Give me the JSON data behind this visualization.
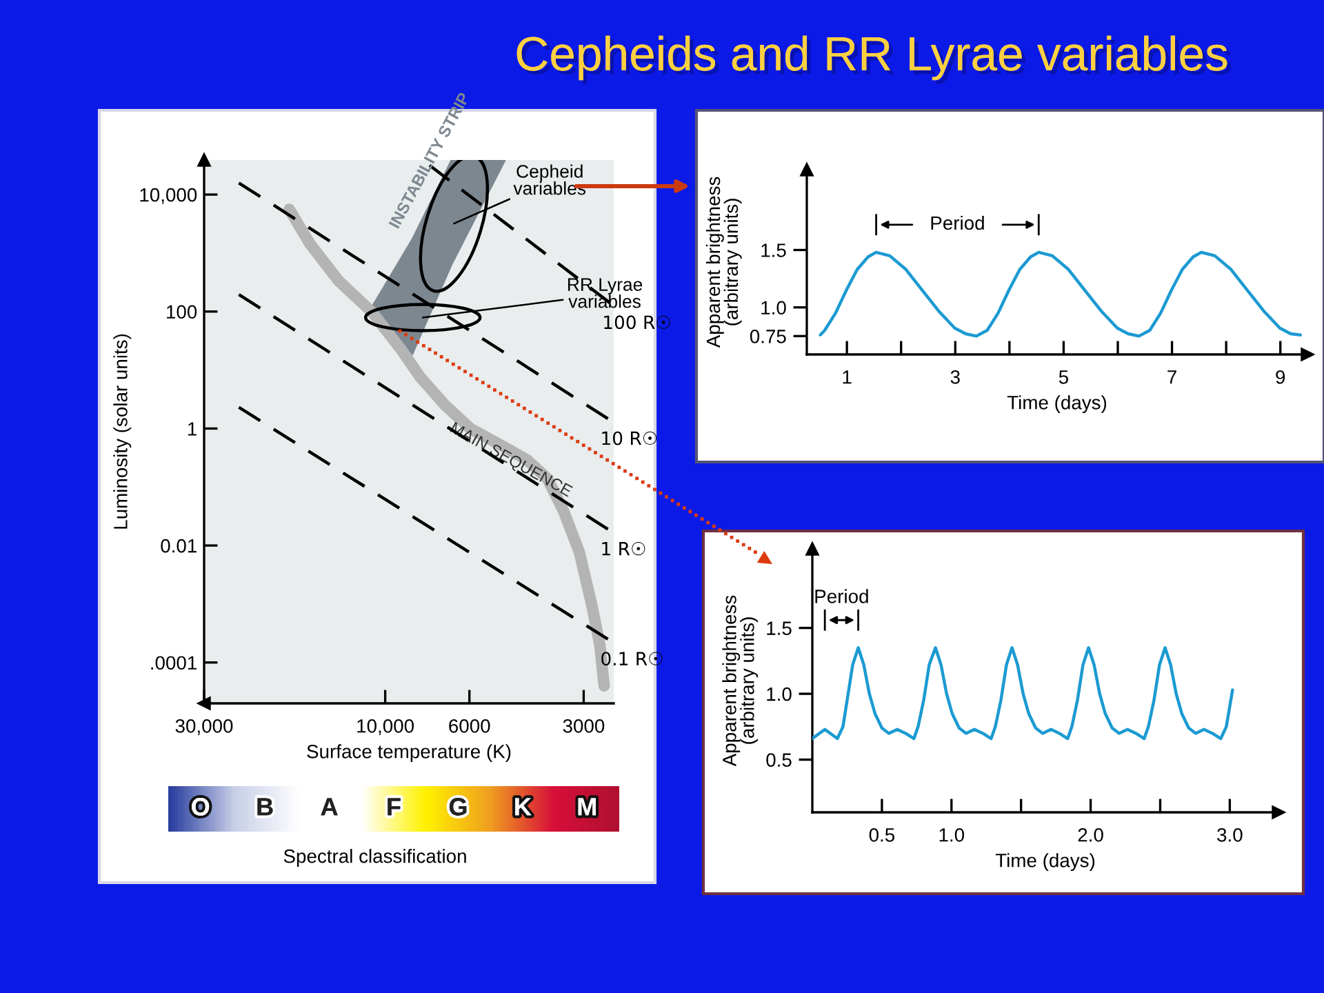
{
  "chart_data": [
    {
      "type": "line",
      "title": "Cepheids and RR Lyrae variables",
      "xlabel": "Surface temperature (K)",
      "ylabel": "Luminosity (solar units)",
      "log": "xy",
      "xlim": [
        30000,
        2500
      ],
      "ylim": [
        2e-05,
        39000
      ],
      "xticks": [
        {
          "value": 30000,
          "label": "30,000"
        },
        {
          "value": 10000,
          "label": "10,000"
        },
        6000,
        3000
      ],
      "yticks": [
        {
          "value": 10000,
          "label": "10,000"
        },
        100,
        1,
        0.01,
        {
          "value": 0.0001,
          "label": ".0001"
        }
      ],
      "series": [
        {
          "name": "INSTABILITY STRIP",
          "type": "line",
          "color": "#7d8790",
          "x": [
            10800,
            8480,
            6690,
            4830
          ],
          "values": [
            null,
            null,
            null,
            null
          ],
          "lower": [
            125,
            18.6,
            630,
            39000
          ],
          "upper": [
            125,
            1740,
            39000,
            39000
          ]
        },
        {
          "name": "MAIN SEQUENCE",
          "type": "line",
          "color": "#b4b4b4",
          "x": [
            17900,
            15800,
            13300,
            10800,
            9060,
            8090,
            6950,
            5970,
            4900,
            4230,
            3740,
            3390,
            3080,
            2860,
            2720,
            2650
          ],
          "values": [
            5600,
            1450,
            340,
            96,
            22,
            7.6,
            2.5,
            1.0,
            0.5,
            0.29,
            0.14,
            0.039,
            0.0077,
            0.001,
            0.0002,
            4e-05
          ]
        },
        {
          "name": "100 R☉",
          "type": "line",
          "line_style": "dashed",
          "color": "#000000",
          "x": [
            7640,
            2560
          ],
          "values": [
            31600,
            141
          ]
        },
        {
          "name": "10 R☉",
          "type": "line",
          "line_style": "dashed",
          "color": "#000000",
          "x": [
            24300,
            2590
          ],
          "values": [
            15800,
            1.47
          ]
        },
        {
          "name": "1 R☉",
          "type": "line",
          "line_style": "dashed",
          "color": "#000000",
          "x": [
            24300,
            2590
          ],
          "values": [
            195,
            0.019
          ]
        },
        {
          "name": "0.1 R☉",
          "type": "line",
          "line_style": "dashed",
          "color": "#000000",
          "x": [
            24300,
            2590
          ],
          "values": [
            2.3,
            0.00025
          ]
        }
      ],
      "annotations": [
        "Cepheid\nvariables",
        {
          "text": "RR Lyrae\nvariables",
          "x": 7960,
          "y": 79
        },
        "O",
        "B",
        "A",
        "F",
        "G",
        "K",
        "M",
        "Spectral classification"
      ]
    },
    {
      "type": "line",
      "xlabel": "Time (days)",
      "ylabel": "Apparent brightness\n(arbitrary units)",
      "xlim": [
        0.26,
        9.5
      ],
      "ylim": [
        0.59,
        2.2
      ],
      "xticks": [
        1,
        {
          "value": 2,
          "label": null
        },
        3,
        {
          "value": 4,
          "label": null
        },
        5,
        {
          "value": 6,
          "label": null
        },
        7,
        {
          "value": 8,
          "label": null
        },
        9
      ],
      "yticks": [
        0.75,
        {
          "value": 1.0,
          "label": "1.0"
        },
        1.5
      ],
      "series": [
        {
          "color": "#1b9ad2",
          "x": [
            0.51,
            0.59,
            0.79,
            0.99,
            1.19,
            1.39,
            1.54,
            1.79,
            2.09,
            2.39,
            2.69,
            2.99,
            3.19,
            3.39,
            3.59,
            3.79,
            3.99,
            4.19,
            4.39,
            4.54,
            4.79,
            5.09,
            5.39,
            5.69,
            5.99,
            6.19,
            6.39,
            6.59,
            6.79,
            6.99,
            7.19,
            7.39,
            7.54,
            7.79,
            8.09,
            8.39,
            8.69,
            8.99,
            9.19,
            9.37
          ],
          "values": [
            0.76,
            0.8,
            0.95,
            1.15,
            1.33,
            1.44,
            1.48,
            1.45,
            1.33,
            1.15,
            0.97,
            0.82,
            0.77,
            0.75,
            0.8,
            0.95,
            1.15,
            1.33,
            1.44,
            1.48,
            1.45,
            1.33,
            1.15,
            0.97,
            0.82,
            0.77,
            0.75,
            0.8,
            0.95,
            1.15,
            1.33,
            1.44,
            1.48,
            1.45,
            1.33,
            1.15,
            0.97,
            0.82,
            0.77,
            0.76
          ]
        }
      ],
      "annotations": [
        "Period"
      ]
    },
    {
      "type": "line",
      "xlabel": "Time (days)",
      "ylabel": "Apparent brightness\n(arbitrary units)",
      "xlim": [
        0,
        3.35
      ],
      "ylim": [
        0.1,
        2.1
      ],
      "xticks": [
        0.5,
        {
          "value": 1.0,
          "label": "1.0"
        },
        {
          "value": 1.5,
          "label": null
        },
        {
          "value": 2.0,
          "label": "2.0"
        },
        {
          "value": 2.5,
          "label": null
        },
        {
          "value": 3.0,
          "label": "3.0"
        }
      ],
      "yticks": [
        0.5,
        {
          "value": 1.0,
          "label": "1.0"
        },
        1.5
      ],
      "series": [
        {
          "color": "#1b9ad2",
          "x": [
            0,
            0.09,
            0.18,
            0.22,
            0.25,
            0.29,
            0.33,
            0.37,
            0.41,
            0.45,
            0.5,
            0.55,
            0.61,
            0.67,
            0.73,
            0.76,
            0.8,
            0.84,
            0.885,
            0.925,
            0.965,
            1.005,
            1.055,
            1.105,
            1.165,
            1.225,
            1.285,
            1.315,
            1.355,
            1.395,
            1.435,
            1.475,
            1.515,
            1.555,
            1.605,
            1.655,
            1.715,
            1.775,
            1.835,
            1.865,
            1.905,
            1.945,
            1.985,
            2.025,
            2.065,
            2.105,
            2.155,
            2.205,
            2.265,
            2.325,
            2.385,
            2.415,
            2.455,
            2.495,
            2.535,
            2.575,
            2.615,
            2.655,
            2.705,
            2.755,
            2.815,
            2.875,
            2.935,
            2.975,
            3.02
          ],
          "values": [
            0.66,
            0.73,
            0.66,
            0.75,
            0.95,
            1.22,
            1.35,
            1.22,
            1.0,
            0.85,
            0.74,
            0.7,
            0.73,
            0.7,
            0.66,
            0.75,
            0.95,
            1.22,
            1.35,
            1.22,
            1.0,
            0.85,
            0.74,
            0.7,
            0.73,
            0.7,
            0.66,
            0.75,
            0.95,
            1.22,
            1.35,
            1.22,
            1.0,
            0.85,
            0.74,
            0.7,
            0.73,
            0.7,
            0.66,
            0.75,
            0.95,
            1.22,
            1.35,
            1.22,
            1.0,
            0.85,
            0.74,
            0.7,
            0.73,
            0.7,
            0.66,
            0.75,
            0.95,
            1.22,
            1.35,
            1.22,
            1.0,
            0.85,
            0.74,
            0.7,
            0.73,
            0.7,
            0.66,
            0.75,
            1.03
          ]
        }
      ],
      "annotations": [
        "Period"
      ]
    }
  ]
}
